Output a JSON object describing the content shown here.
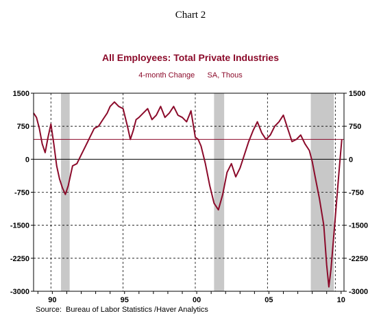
{
  "page_label": "Chart 2",
  "chart_data": {
    "type": "line",
    "title": "All Employees: Total Private Industries",
    "subtitle": "4-month Change      SA, Thous",
    "source": "Source:  Bureau of Labor Statistics /Haver Analytics",
    "xlabel": "",
    "ylabel": "",
    "ylim": [
      -3000,
      1500
    ],
    "xlim": [
      1988.7,
      2010.2
    ],
    "y_ticks": [
      1500,
      750,
      0,
      -750,
      -1500,
      -2250,
      -3000
    ],
    "y_tick_labels": [
      "1500",
      "750",
      "0",
      "-750",
      "-1500",
      "-2250",
      "-3000"
    ],
    "x_ticks": [
      1990,
      1995,
      2000,
      2005,
      2010
    ],
    "x_tick_labels": [
      "90",
      "95",
      "00",
      "05",
      "10"
    ],
    "vertical_gridlines_x": [
      1989.9,
      1994.9,
      1999.9,
      2004.9,
      2009.6
    ],
    "recessions": [
      [
        1990.6,
        1991.2
      ],
      [
        2001.2,
        2001.9
      ],
      [
        2007.9,
        2009.5
      ]
    ],
    "reference_line": 450,
    "series": [
      {
        "name": "",
        "color": "#8b0a2a",
        "x": [
          1988.7,
          1988.9,
          1989.1,
          1989.3,
          1989.5,
          1989.7,
          1989.9,
          1990.1,
          1990.3,
          1990.5,
          1990.7,
          1990.9,
          1991.1,
          1991.4,
          1991.7,
          1992.0,
          1992.3,
          1992.6,
          1992.9,
          1993.2,
          1993.5,
          1993.8,
          1994.0,
          1994.3,
          1994.6,
          1994.9,
          1995.2,
          1995.4,
          1995.6,
          1995.8,
          1996.0,
          1996.3,
          1996.6,
          1996.9,
          1997.2,
          1997.5,
          1997.8,
          1998.1,
          1998.4,
          1998.7,
          1999.0,
          1999.3,
          1999.6,
          1999.9,
          2000.1,
          2000.3,
          2000.6,
          2000.9,
          2001.2,
          2001.5,
          2001.8,
          2002.1,
          2002.4,
          2002.7,
          2003.0,
          2003.3,
          2003.6,
          2003.9,
          2004.2,
          2004.5,
          2004.8,
          2005.1,
          2005.4,
          2005.7,
          2006.0,
          2006.3,
          2006.6,
          2006.9,
          2007.2,
          2007.5,
          2007.8,
          2008.0,
          2008.2,
          2008.5,
          2008.8,
          2009.0,
          2009.15,
          2009.3,
          2009.5,
          2009.7,
          2009.9,
          2010.05
        ],
        "values": [
          1050,
          950,
          700,
          350,
          150,
          500,
          800,
          350,
          -150,
          -450,
          -650,
          -800,
          -600,
          -150,
          -100,
          100,
          300,
          500,
          700,
          750,
          900,
          1050,
          1200,
          1300,
          1200,
          1150,
          750,
          450,
          650,
          900,
          950,
          1050,
          1150,
          900,
          1000,
          1200,
          950,
          1050,
          1200,
          1000,
          950,
          850,
          1100,
          500,
          450,
          300,
          -100,
          -600,
          -1000,
          -1150,
          -800,
          -300,
          -100,
          -400,
          -200,
          100,
          400,
          650,
          850,
          600,
          450,
          550,
          750,
          850,
          1000,
          700,
          400,
          450,
          550,
          350,
          200,
          -50,
          -400,
          -900,
          -1500,
          -2400,
          -2900,
          -2500,
          -1700,
          -900,
          -100,
          450
        ]
      }
    ],
    "grid": true,
    "legend": "none"
  }
}
